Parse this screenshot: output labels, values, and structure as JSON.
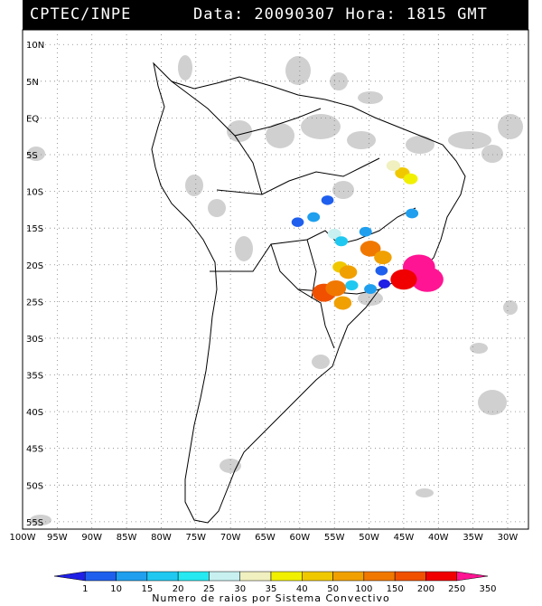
{
  "header": {
    "source": "CPTEC/INPE",
    "datetime": "Data: 20090307 Hora: 1815 GMT"
  },
  "map": {
    "lat_labels": [
      "10N",
      "5N",
      "EQ",
      "5S",
      "10S",
      "15S",
      "20S",
      "25S",
      "30S",
      "35S",
      "40S",
      "45S",
      "50S",
      "55S"
    ],
    "lon_labels": [
      "100W",
      "95W",
      "90W",
      "85W",
      "80W",
      "75W",
      "70W",
      "65W",
      "60W",
      "55W",
      "50W",
      "45W",
      "40W",
      "35W",
      "30W"
    ],
    "lat_range": [
      -56,
      12
    ],
    "lon_range": [
      -100,
      -27
    ],
    "grid_style": "dotted",
    "convective_systems": [
      {
        "lon": -45.2,
        "lat": -7.5,
        "rays": 50
      },
      {
        "lon": -44.0,
        "lat": -8.3,
        "rays": 40
      },
      {
        "lon": -46.5,
        "lat": -6.5,
        "rays": 35
      },
      {
        "lon": -56.0,
        "lat": -11.2,
        "rays": 10
      },
      {
        "lon": -60.3,
        "lat": -14.2,
        "rays": 10
      },
      {
        "lon": -58.0,
        "lat": -13.5,
        "rays": 15
      },
      {
        "lon": -43.8,
        "lat": -13.0,
        "rays": 15
      },
      {
        "lon": -50.5,
        "lat": -15.5,
        "rays": 15
      },
      {
        "lon": -55.0,
        "lat": -15.8,
        "rays": 30
      },
      {
        "lon": -54.0,
        "lat": -16.8,
        "rays": 20
      },
      {
        "lon": -49.8,
        "lat": -17.8,
        "rays": 150
      },
      {
        "lon": -48.0,
        "lat": -19.0,
        "rays": 100
      },
      {
        "lon": -42.8,
        "lat": -20.3,
        "rays": 350
      },
      {
        "lon": -41.6,
        "lat": -22.0,
        "rays": 350
      },
      {
        "lon": -45.0,
        "lat": -22.0,
        "rays": 250
      },
      {
        "lon": -48.2,
        "lat": -20.8,
        "rays": 10
      },
      {
        "lon": -54.2,
        "lat": -20.3,
        "rays": 50
      },
      {
        "lon": -53.0,
        "lat": -21.0,
        "rays": 100
      },
      {
        "lon": -56.5,
        "lat": -23.8,
        "rays": 200
      },
      {
        "lon": -54.8,
        "lat": -23.2,
        "rays": 150
      },
      {
        "lon": -53.8,
        "lat": -25.2,
        "rays": 100
      },
      {
        "lon": -52.5,
        "lat": -22.8,
        "rays": 20
      },
      {
        "lon": -49.8,
        "lat": -23.3,
        "rays": 15
      },
      {
        "lon": -47.8,
        "lat": -22.6,
        "rays": 1
      }
    ]
  },
  "legend": {
    "caption": "Numero de raios por Sistema Convectivo",
    "labels": [
      "1",
      "10",
      "15",
      "20",
      "25",
      "30",
      "35",
      "40",
      "50",
      "100",
      "150",
      "200",
      "250",
      "350"
    ],
    "colors": [
      "#1f1fe6",
      "#1f5fee",
      "#1f9fee",
      "#1fc8f0",
      "#25e8f0",
      "#c8f0f0",
      "#f0f0c0",
      "#f0f000",
      "#f0c800",
      "#f0a000",
      "#f07800",
      "#f05000",
      "#f00000",
      "#ff1493"
    ]
  }
}
